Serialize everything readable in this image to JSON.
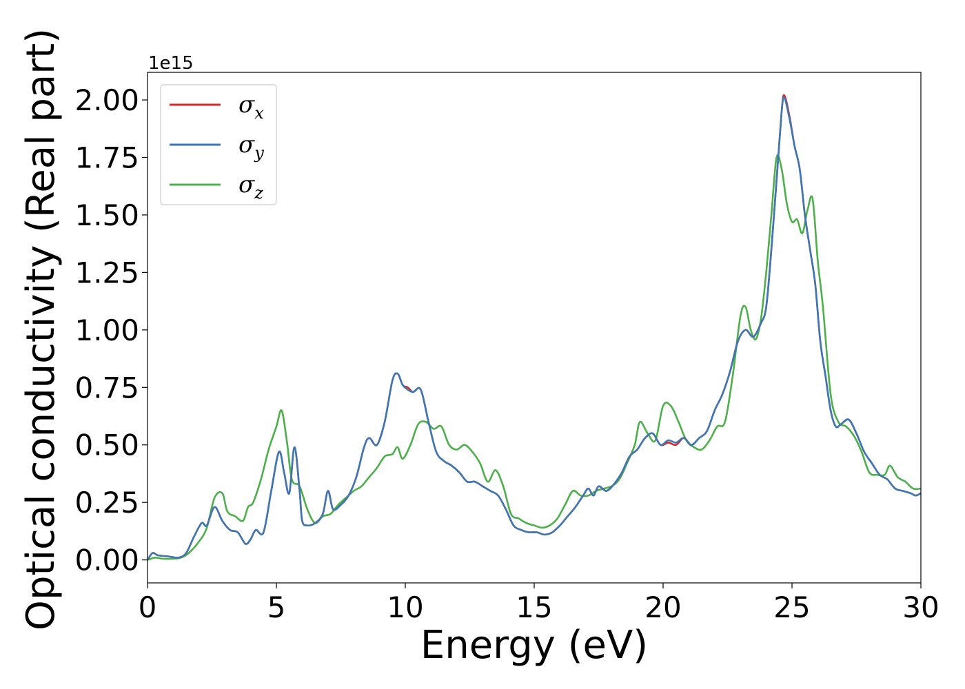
{
  "chart_data": {
    "type": "line",
    "xlabel": "Energy (eV)",
    "ylabel": "Optical conductivity (Real part)",
    "y_offset_label": "1e15",
    "xlim": [
      0,
      30
    ],
    "ylim": [
      -0.1,
      2.12
    ],
    "x_ticks": [
      0,
      5,
      10,
      15,
      20,
      25,
      30
    ],
    "x_tick_labels": [
      "0",
      "5",
      "10",
      "15",
      "20",
      "25",
      "30"
    ],
    "y_ticks": [
      0,
      0.25,
      0.5,
      0.75,
      1.0,
      1.25,
      1.5,
      1.75,
      2.0
    ],
    "y_tick_labels": [
      "0.00",
      "0.25",
      "0.50",
      "0.75",
      "1.00",
      "1.25",
      "1.50",
      "1.75",
      "2.00"
    ],
    "grid": false,
    "legend_position": "top-left",
    "series": [
      {
        "name": "σx",
        "symbol": "σ",
        "subscript": "x",
        "color": "#d62728",
        "x": [
          0,
          0.2,
          0.4,
          0.8,
          1.2,
          1.5,
          1.8,
          2.1,
          2.3,
          2.6,
          2.9,
          3.2,
          3.5,
          3.8,
          4.0,
          4.2,
          4.5,
          4.8,
          5.1,
          5.3,
          5.5,
          5.7,
          5.9,
          6.0,
          6.2,
          6.5,
          6.8,
          7.0,
          7.2,
          7.5,
          7.8,
          8.1,
          8.4,
          8.6,
          8.9,
          9.2,
          9.5,
          9.7,
          9.9,
          10.1,
          10.3,
          10.6,
          10.9,
          11.2,
          11.5,
          11.8,
          12.1,
          12.4,
          12.7,
          13.0,
          13.3,
          13.6,
          13.9,
          14.2,
          14.5,
          14.8,
          15.1,
          15.4,
          15.7,
          16.0,
          16.3,
          16.6,
          16.9,
          17.1,
          17.3,
          17.5,
          17.8,
          18.1,
          18.4,
          18.7,
          19.0,
          19.3,
          19.6,
          19.9,
          20.2,
          20.5,
          20.8,
          21.1,
          21.4,
          21.7,
          22.0,
          22.3,
          22.6,
          22.9,
          23.2,
          23.5,
          23.8,
          24.0,
          24.2,
          24.4,
          24.6,
          24.7,
          24.9,
          25.1,
          25.3,
          25.5,
          25.7,
          25.9,
          26.1,
          26.3,
          26.5,
          26.7,
          26.9,
          27.2,
          27.5,
          27.8,
          28.1,
          28.4,
          28.7,
          29.0,
          29.3,
          29.6,
          29.8,
          30
        ],
        "y": [
          0.0,
          0.03,
          0.02,
          0.015,
          0.01,
          0.03,
          0.1,
          0.16,
          0.15,
          0.23,
          0.17,
          0.13,
          0.12,
          0.07,
          0.09,
          0.13,
          0.12,
          0.3,
          0.47,
          0.38,
          0.29,
          0.49,
          0.3,
          0.17,
          0.15,
          0.16,
          0.2,
          0.3,
          0.22,
          0.24,
          0.28,
          0.36,
          0.49,
          0.53,
          0.5,
          0.6,
          0.78,
          0.81,
          0.76,
          0.75,
          0.73,
          0.74,
          0.6,
          0.47,
          0.43,
          0.41,
          0.38,
          0.34,
          0.34,
          0.32,
          0.3,
          0.28,
          0.22,
          0.15,
          0.13,
          0.12,
          0.12,
          0.11,
          0.12,
          0.15,
          0.19,
          0.23,
          0.28,
          0.31,
          0.28,
          0.32,
          0.3,
          0.33,
          0.38,
          0.45,
          0.48,
          0.53,
          0.55,
          0.5,
          0.51,
          0.5,
          0.53,
          0.5,
          0.53,
          0.56,
          0.65,
          0.72,
          0.82,
          0.95,
          1.0,
          0.97,
          1.03,
          1.1,
          1.35,
          1.65,
          1.95,
          2.02,
          1.93,
          1.8,
          1.7,
          1.5,
          1.35,
          1.2,
          0.95,
          0.8,
          0.65,
          0.58,
          0.59,
          0.61,
          0.55,
          0.47,
          0.42,
          0.37,
          0.35,
          0.31,
          0.3,
          0.29,
          0.28,
          0.29
        ]
      },
      {
        "name": "σy",
        "symbol": "σ",
        "subscript": "y",
        "color": "#3c78b4",
        "x": [
          0,
          0.2,
          0.4,
          0.8,
          1.2,
          1.5,
          1.8,
          2.1,
          2.3,
          2.6,
          2.9,
          3.2,
          3.5,
          3.8,
          4.0,
          4.2,
          4.5,
          4.8,
          5.1,
          5.3,
          5.5,
          5.7,
          5.9,
          6.0,
          6.2,
          6.5,
          6.8,
          7.0,
          7.2,
          7.5,
          7.8,
          8.1,
          8.4,
          8.6,
          8.9,
          9.2,
          9.5,
          9.7,
          9.9,
          10.1,
          10.3,
          10.6,
          10.9,
          11.2,
          11.5,
          11.8,
          12.1,
          12.4,
          12.7,
          13.0,
          13.3,
          13.6,
          13.9,
          14.2,
          14.5,
          14.8,
          15.1,
          15.4,
          15.7,
          16.0,
          16.3,
          16.6,
          16.9,
          17.1,
          17.3,
          17.5,
          17.8,
          18.1,
          18.4,
          18.7,
          19.0,
          19.3,
          19.6,
          19.9,
          20.2,
          20.5,
          20.8,
          21.1,
          21.4,
          21.7,
          22.0,
          22.3,
          22.6,
          22.9,
          23.2,
          23.5,
          23.8,
          24.0,
          24.2,
          24.4,
          24.6,
          24.7,
          24.9,
          25.1,
          25.3,
          25.5,
          25.7,
          25.9,
          26.1,
          26.3,
          26.5,
          26.7,
          26.9,
          27.2,
          27.5,
          27.8,
          28.1,
          28.4,
          28.7,
          29.0,
          29.3,
          29.6,
          29.8,
          30
        ],
        "y": [
          0.0,
          0.03,
          0.02,
          0.015,
          0.01,
          0.03,
          0.1,
          0.16,
          0.15,
          0.23,
          0.17,
          0.13,
          0.12,
          0.07,
          0.09,
          0.13,
          0.12,
          0.3,
          0.47,
          0.38,
          0.29,
          0.49,
          0.3,
          0.17,
          0.15,
          0.16,
          0.2,
          0.3,
          0.22,
          0.24,
          0.28,
          0.36,
          0.49,
          0.53,
          0.5,
          0.6,
          0.78,
          0.81,
          0.76,
          0.74,
          0.73,
          0.74,
          0.6,
          0.47,
          0.43,
          0.41,
          0.38,
          0.34,
          0.34,
          0.32,
          0.3,
          0.28,
          0.22,
          0.15,
          0.13,
          0.12,
          0.12,
          0.11,
          0.12,
          0.15,
          0.19,
          0.23,
          0.28,
          0.31,
          0.28,
          0.32,
          0.3,
          0.33,
          0.38,
          0.45,
          0.48,
          0.53,
          0.55,
          0.5,
          0.52,
          0.51,
          0.53,
          0.5,
          0.53,
          0.56,
          0.65,
          0.72,
          0.82,
          0.95,
          1.0,
          0.97,
          1.03,
          1.1,
          1.35,
          1.65,
          1.95,
          2.01,
          1.92,
          1.8,
          1.7,
          1.5,
          1.35,
          1.2,
          0.95,
          0.8,
          0.65,
          0.58,
          0.59,
          0.61,
          0.55,
          0.47,
          0.42,
          0.37,
          0.35,
          0.31,
          0.3,
          0.29,
          0.28,
          0.29
        ]
      },
      {
        "name": "σz",
        "symbol": "σ",
        "subscript": "z",
        "color": "#4daf4a",
        "x": [
          0,
          0.3,
          0.6,
          1.0,
          1.3,
          1.6,
          2.0,
          2.3,
          2.6,
          2.9,
          3.1,
          3.4,
          3.7,
          3.9,
          4.1,
          4.4,
          4.7,
          5.0,
          5.2,
          5.4,
          5.6,
          5.9,
          6.2,
          6.5,
          6.8,
          7.1,
          7.4,
          7.7,
          8.0,
          8.3,
          8.6,
          8.9,
          9.2,
          9.5,
          9.7,
          9.9,
          10.2,
          10.5,
          10.8,
          11.1,
          11.4,
          11.7,
          12.0,
          12.3,
          12.6,
          12.9,
          13.2,
          13.5,
          13.8,
          14.1,
          14.4,
          14.7,
          15.0,
          15.3,
          15.6,
          15.9,
          16.2,
          16.5,
          16.8,
          17.1,
          17.4,
          17.7,
          18.0,
          18.3,
          18.6,
          18.9,
          19.1,
          19.4,
          19.7,
          20.0,
          20.3,
          20.6,
          20.9,
          21.2,
          21.5,
          21.8,
          22.1,
          22.4,
          22.7,
          23.0,
          23.2,
          23.4,
          23.6,
          23.8,
          24.0,
          24.2,
          24.4,
          24.6,
          24.8,
          25.0,
          25.2,
          25.4,
          25.6,
          25.8,
          26.0,
          26.2,
          26.5,
          26.8,
          27.1,
          27.4,
          27.7,
          28.0,
          28.3,
          28.6,
          28.8,
          29.1,
          29.4,
          29.7,
          30
        ],
        "y": [
          0.0,
          0.01,
          0.005,
          0.005,
          0.01,
          0.03,
          0.08,
          0.14,
          0.27,
          0.29,
          0.21,
          0.19,
          0.17,
          0.23,
          0.25,
          0.35,
          0.48,
          0.58,
          0.65,
          0.52,
          0.35,
          0.32,
          0.22,
          0.16,
          0.19,
          0.2,
          0.24,
          0.27,
          0.3,
          0.32,
          0.36,
          0.4,
          0.45,
          0.46,
          0.49,
          0.44,
          0.5,
          0.59,
          0.6,
          0.57,
          0.58,
          0.5,
          0.48,
          0.5,
          0.47,
          0.42,
          0.34,
          0.39,
          0.32,
          0.2,
          0.18,
          0.16,
          0.15,
          0.14,
          0.15,
          0.18,
          0.24,
          0.3,
          0.28,
          0.28,
          0.3,
          0.31,
          0.32,
          0.35,
          0.42,
          0.5,
          0.6,
          0.55,
          0.52,
          0.67,
          0.67,
          0.6,
          0.52,
          0.49,
          0.48,
          0.52,
          0.58,
          0.6,
          0.8,
          1.06,
          1.1,
          1.0,
          0.96,
          1.05,
          1.25,
          1.5,
          1.75,
          1.7,
          1.55,
          1.47,
          1.48,
          1.42,
          1.52,
          1.57,
          1.3,
          1.1,
          0.72,
          0.6,
          0.58,
          0.54,
          0.47,
          0.38,
          0.37,
          0.37,
          0.41,
          0.36,
          0.34,
          0.31,
          0.31
        ]
      }
    ]
  }
}
